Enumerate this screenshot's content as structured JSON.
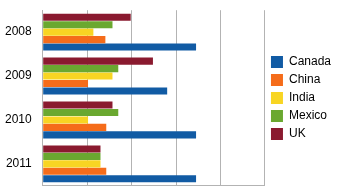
{
  "chart_data": {
    "type": "bar",
    "orientation": "horizontal",
    "categories": [
      "2008",
      "2009",
      "2010",
      "2011"
    ],
    "series": [
      {
        "name": "Canada",
        "color": "#115ba4",
        "values": [
          3.45,
          2.8,
          3.45,
          3.45
        ]
      },
      {
        "name": "China",
        "color": "#f56c1a",
        "values": [
          1.41,
          1.02,
          1.43,
          1.43
        ]
      },
      {
        "name": "India",
        "color": "#f8d523",
        "values": [
          1.14,
          1.57,
          1.02,
          1.3
        ]
      },
      {
        "name": "Mexico",
        "color": "#6aa830",
        "values": [
          1.57,
          1.7,
          1.7,
          1.3
        ]
      },
      {
        "name": "UK",
        "color": "#8a1a2f",
        "values": [
          1.98,
          2.48,
          1.57,
          1.3
        ]
      }
    ],
    "xlim": [
      0,
      5
    ],
    "xticks": [
      0,
      1,
      2,
      3,
      4,
      5
    ],
    "grid": true,
    "legend": "right",
    "tick_labels": "y"
  }
}
